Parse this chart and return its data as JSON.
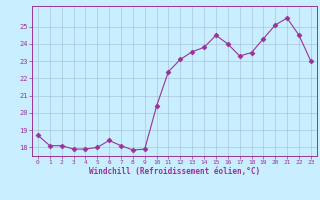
{
  "x": [
    0,
    1,
    2,
    3,
    4,
    5,
    6,
    7,
    8,
    9,
    10,
    11,
    12,
    13,
    14,
    15,
    16,
    17,
    18,
    19,
    20,
    21,
    22,
    23
  ],
  "y": [
    18.7,
    18.1,
    18.1,
    17.9,
    17.9,
    18.0,
    18.4,
    18.1,
    17.85,
    17.9,
    20.4,
    22.4,
    23.1,
    23.55,
    23.8,
    24.5,
    24.0,
    23.3,
    23.5,
    24.3,
    25.1,
    25.5,
    24.5,
    23.0
  ],
  "line_color": "#993399",
  "marker": "D",
  "markersize": 2.5,
  "bg_color": "#c8eeff",
  "grid_color": "#a0b8cc",
  "xlabel": "Windchill (Refroidissement éolien,°C)",
  "ylim": [
    17.5,
    26.2
  ],
  "yticks": [
    18,
    19,
    20,
    21,
    22,
    23,
    24,
    25
  ],
  "xticks": [
    0,
    1,
    2,
    3,
    4,
    5,
    6,
    7,
    8,
    9,
    10,
    11,
    12,
    13,
    14,
    15,
    16,
    17,
    18,
    19,
    20,
    21,
    22,
    23
  ],
  "tick_color": "#993399",
  "label_color": "#993399"
}
